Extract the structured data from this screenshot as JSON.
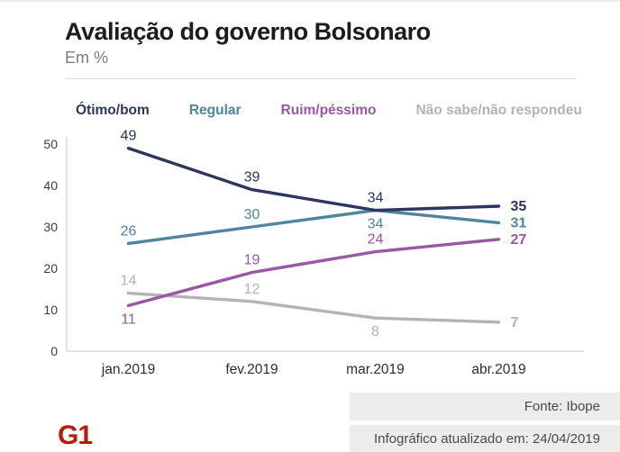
{
  "header": {
    "title": "Avaliação do governo Bolsonaro",
    "subtitle": "Em %"
  },
  "chart_data": {
    "type": "line",
    "title": "Avaliação do governo Bolsonaro",
    "subtitle": "Em %",
    "categories": [
      "jan.2019",
      "fev.2019",
      "mar.2019",
      "abr.2019"
    ],
    "series": [
      {
        "name": "Ótimo/bom",
        "color": "#2e3561",
        "values": [
          49,
          39,
          34,
          35
        ]
      },
      {
        "name": "Regular",
        "color": "#4e86a0",
        "values": [
          26,
          30,
          34,
          31
        ]
      },
      {
        "name": "Ruim/péssimo",
        "color": "#9a57a5",
        "values": [
          11,
          19,
          24,
          27
        ]
      },
      {
        "name": "Não sabe/não respondeu",
        "color": "#b7b0b9",
        "values": [
          14,
          12,
          8,
          7
        ]
      }
    ],
    "xlabel": "",
    "ylabel": "",
    "ylim": [
      0,
      50
    ],
    "yticks": [
      0,
      10,
      20,
      30,
      40,
      50
    ],
    "grid": false,
    "legend_position": "top"
  },
  "footer": {
    "source": "Fonte: Ibope",
    "updated": "Infográfico atualizado em: 24/04/2019",
    "logo": "G1"
  }
}
